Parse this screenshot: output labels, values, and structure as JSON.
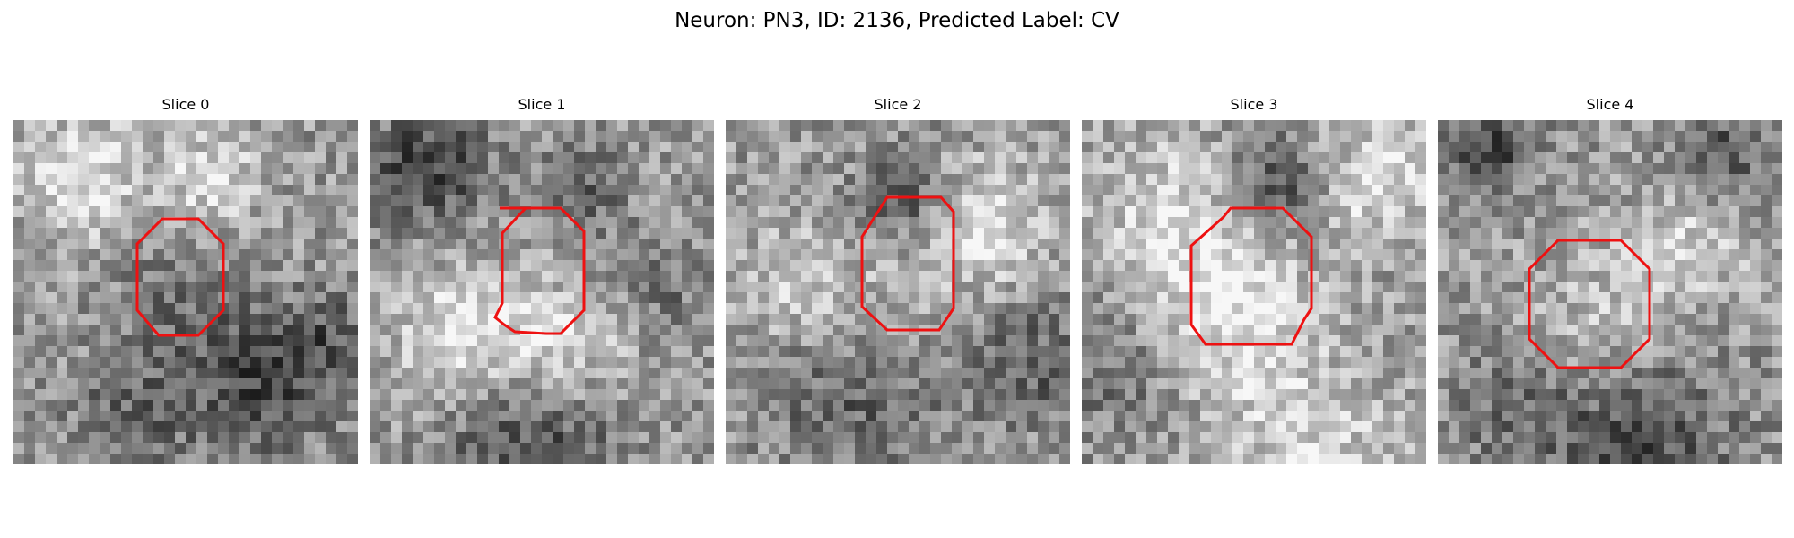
{
  "figure": {
    "title": "Neuron: PN3, ID: 2136, Predicted Label: CV"
  },
  "panels": [
    {
      "title": "Slice 0"
    },
    {
      "title": "Slice 1"
    },
    {
      "title": "Slice 2"
    },
    {
      "title": "Slice 3"
    },
    {
      "title": "Slice 4"
    }
  ],
  "colors": {
    "outline": "#ee1111",
    "background": "#ffffff"
  }
}
